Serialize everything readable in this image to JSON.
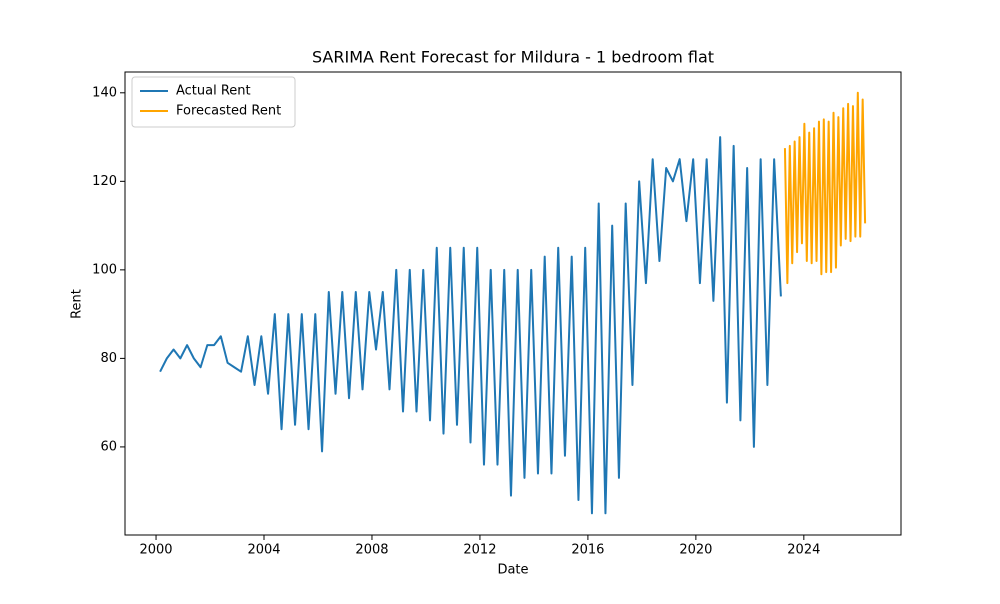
{
  "chart_data": {
    "type": "line",
    "title": "SARIMA Rent Forecast for Mildura - 1 bedroom flat",
    "xlabel": "Date",
    "ylabel": "Rent",
    "xlim": [
      1998.85,
      2027.6
    ],
    "ylim": [
      40.1,
      144.7
    ],
    "xticks": [
      2000,
      2004,
      2008,
      2012,
      2016,
      2020,
      2024
    ],
    "yticks": [
      60,
      80,
      100,
      120,
      140
    ],
    "legend": "upper left",
    "series": [
      {
        "name": "Actual Rent",
        "color": "#1f77b4",
        "x": [
          2000.15,
          2000.4,
          2000.65,
          2000.9,
          2001.15,
          2001.4,
          2001.65,
          2001.9,
          2002.15,
          2002.4,
          2002.65,
          2002.9,
          2003.15,
          2003.4,
          2003.65,
          2003.9,
          2004.15,
          2004.4,
          2004.65,
          2004.9,
          2005.15,
          2005.4,
          2005.65,
          2005.9,
          2006.15,
          2006.4,
          2006.65,
          2006.9,
          2007.15,
          2007.4,
          2007.65,
          2007.9,
          2008.15,
          2008.4,
          2008.65,
          2008.9,
          2009.15,
          2009.4,
          2009.65,
          2009.9,
          2010.15,
          2010.4,
          2010.65,
          2010.9,
          2011.15,
          2011.4,
          2011.65,
          2011.9,
          2012.15,
          2012.4,
          2012.65,
          2012.9,
          2013.15,
          2013.4,
          2013.65,
          2013.9,
          2014.15,
          2014.4,
          2014.65,
          2014.9,
          2015.15,
          2015.4,
          2015.65,
          2015.9,
          2016.15,
          2016.4,
          2016.65,
          2016.9,
          2017.15,
          2017.4,
          2017.65,
          2017.9,
          2018.15,
          2018.4,
          2018.65,
          2018.9,
          2019.15,
          2019.4,
          2019.65,
          2019.9,
          2020.15,
          2020.4,
          2020.65,
          2020.9,
          2021.15,
          2021.4,
          2021.65,
          2021.9,
          2022.15,
          2022.4,
          2022.65,
          2022.9,
          2023.15
        ],
        "values": [
          77,
          80,
          82,
          80,
          83,
          80,
          78,
          83,
          83,
          85,
          79,
          78,
          77,
          85,
          74,
          85,
          72,
          90,
          64,
          90,
          65,
          90,
          64,
          90,
          59,
          95,
          72,
          95,
          71,
          95,
          73,
          95,
          82,
          95,
          73,
          100,
          68,
          100,
          68,
          100,
          66,
          105,
          63,
          105,
          65,
          105,
          61,
          105,
          56,
          100,
          56,
          100,
          49,
          100,
          53,
          100,
          54,
          103,
          54,
          105,
          58,
          103,
          48,
          105,
          45,
          115,
          45,
          110,
          53,
          115,
          74,
          120,
          97,
          125,
          102,
          123,
          120,
          125,
          111,
          125,
          97,
          125,
          93,
          130,
          70,
          128,
          66,
          123,
          60,
          125,
          74,
          125,
          94
        ]
      },
      {
        "name": "Forecasted Rent",
        "color": "#ffa500",
        "x": [
          2023.3,
          2023.39,
          2023.48,
          2023.57,
          2023.66,
          2023.75,
          2023.84,
          2023.93,
          2024.02,
          2024.11,
          2024.2,
          2024.29,
          2024.38,
          2024.47,
          2024.56,
          2024.65,
          2024.74,
          2024.83,
          2024.92,
          2025.01,
          2025.1,
          2025.19,
          2025.28,
          2025.37,
          2025.46,
          2025.55,
          2025.64,
          2025.73,
          2025.82,
          2025.91,
          2026.0,
          2026.09,
          2026.18,
          2026.27
        ],
        "values": [
          127.5,
          97,
          128,
          101.5,
          129,
          104,
          130,
          106,
          133,
          102,
          131,
          101.5,
          132,
          102,
          133.5,
          99,
          134,
          99.5,
          133.5,
          99.5,
          135.5,
          100.5,
          134.5,
          105.5,
          136.5,
          107,
          137.5,
          106.5,
          137,
          107.5,
          140,
          107.5,
          138.5,
          110.5
        ]
      }
    ]
  }
}
